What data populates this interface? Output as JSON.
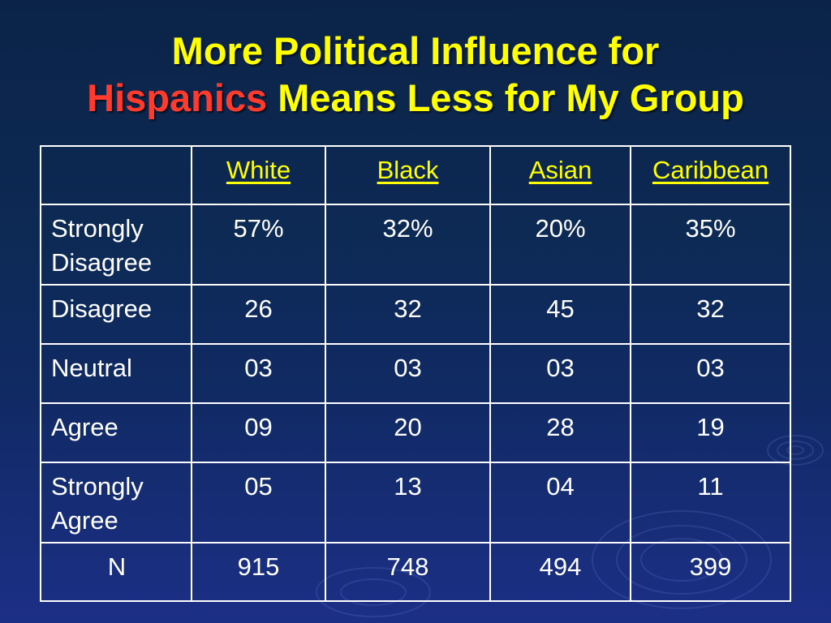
{
  "title": {
    "line1": "More Political Influence for",
    "highlight": "Hispanics",
    "line2_rest": " Means Less for My Group"
  },
  "colors": {
    "title": "#ffff00",
    "highlight": "#ff3b2e",
    "text": "#ffffff",
    "border": "#ffffff"
  },
  "table": {
    "columns": [
      "",
      "White",
      "Black",
      "Asian",
      "Caribbean"
    ],
    "rows": [
      {
        "label": "Strongly Disagree",
        "values": [
          "57%",
          "32%",
          "20%",
          "35%"
        ]
      },
      {
        "label": "Disagree",
        "values": [
          "26",
          "32",
          "45",
          "32"
        ]
      },
      {
        "label": "Neutral",
        "values": [
          "03",
          "03",
          "03",
          "03"
        ]
      },
      {
        "label": "Agree",
        "values": [
          "09",
          "20",
          "28",
          "19"
        ]
      },
      {
        "label": "Strongly Agree",
        "values": [
          "05",
          "13",
          "04",
          "11"
        ]
      },
      {
        "label": "N",
        "values": [
          "915",
          "748",
          "494",
          "399"
        ]
      }
    ]
  }
}
